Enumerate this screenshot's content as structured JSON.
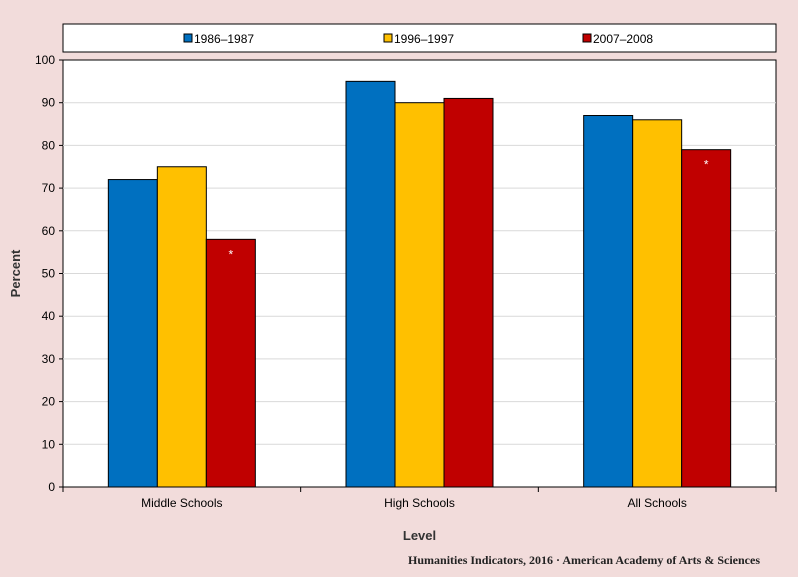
{
  "chart_data": {
    "type": "bar",
    "categories": [
      "Middle Schools",
      "High Schools",
      "All Schools"
    ],
    "series": [
      {
        "name": "1986–1987",
        "color": "#0070c0",
        "values": [
          72,
          95,
          87
        ]
      },
      {
        "name": "1996–1997",
        "color": "#ffc000",
        "values": [
          75,
          90,
          86
        ]
      },
      {
        "name": "2007–2008",
        "color": "#c00000",
        "values": [
          58,
          91,
          79
        ]
      }
    ],
    "xlabel": "Level",
    "ylabel": "Percent",
    "ylim": [
      0,
      100
    ],
    "yticks": [
      0,
      10,
      20,
      30,
      40,
      50,
      60,
      70,
      80,
      90,
      100
    ],
    "grid": true,
    "legend_position": "top",
    "annotations": [
      {
        "category": "Middle Schools",
        "series": "2007–2008",
        "text": "*"
      },
      {
        "category": "All Schools",
        "series": "2007–2008",
        "text": "*"
      }
    ]
  },
  "footer": {
    "source": "Humanities Indicators, 2016 · American Academy of Arts & Sciences"
  }
}
